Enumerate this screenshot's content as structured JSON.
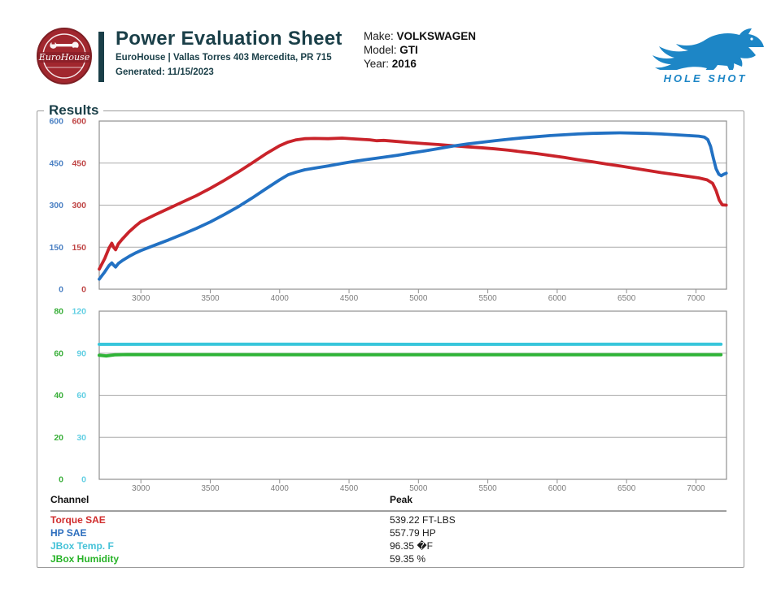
{
  "header": {
    "title": "Power Evaluation Sheet",
    "subtitle": "EuroHouse | Vallas Torres 403 Mercedita, PR 715",
    "generated": "Generated: 11/15/2023",
    "shop_logo_text": "EuroHouse",
    "brand_logo_text": "HOLE SHOT",
    "vehicle": {
      "make_label": "Make:",
      "make": "VOLKSWAGEN",
      "model_label": "Model:",
      "model": "GTI",
      "year_label": "Year:",
      "year": "2016"
    },
    "colors": {
      "accent_teal": "#1a3f48",
      "logo_red": "#a1272e",
      "brand_blue": "#1d86c6"
    }
  },
  "results": {
    "legend": "Results"
  },
  "chart_data": [
    {
      "type": "line",
      "name": "power-chart",
      "x_axis": {
        "range": [
          2700,
          7220
        ],
        "ticks": [
          3000,
          3500,
          4000,
          4500,
          5000,
          5500,
          6000,
          6500,
          7000
        ],
        "label_color": "#7d7d7d"
      },
      "axes": {
        "left_outer": {
          "color": "#4d82c4",
          "range": [
            0,
            600
          ],
          "ticks": [
            600,
            450,
            300,
            150,
            0
          ]
        },
        "left_inner": {
          "color": "#bf4545",
          "range": [
            0,
            600
          ],
          "ticks": [
            600,
            450,
            300,
            150,
            0
          ]
        }
      },
      "grid": true,
      "series": [
        {
          "name": "Torque SAE",
          "color": "#c9232a",
          "width": 3.8,
          "y_range": [
            0,
            600
          ],
          "points": [
            [
              2700,
              72
            ],
            [
              2740,
              110
            ],
            [
              2770,
              146
            ],
            [
              2790,
              164
            ],
            [
              2803,
              150
            ],
            [
              2818,
              141
            ],
            [
              2838,
              162
            ],
            [
              2868,
              180
            ],
            [
              2915,
              205
            ],
            [
              2965,
              227
            ],
            [
              3000,
              241
            ],
            [
              3100,
              265
            ],
            [
              3200,
              288
            ],
            [
              3300,
              311
            ],
            [
              3400,
              334
            ],
            [
              3500,
              360
            ],
            [
              3600,
              388
            ],
            [
              3700,
              418
            ],
            [
              3800,
              450
            ],
            [
              3900,
              483
            ],
            [
              4000,
              512
            ],
            [
              4060,
              525
            ],
            [
              4120,
              533
            ],
            [
              4180,
              537
            ],
            [
              4250,
              538
            ],
            [
              4350,
              537
            ],
            [
              4450,
              539
            ],
            [
              4550,
              536
            ],
            [
              4650,
              533
            ],
            [
              4700,
              530
            ],
            [
              4750,
              531
            ],
            [
              4850,
              527
            ],
            [
              4950,
              523
            ],
            [
              5050,
              519
            ],
            [
              5150,
              516
            ],
            [
              5250,
              512
            ],
            [
              5350,
              508
            ],
            [
              5450,
              505
            ],
            [
              5550,
              501
            ],
            [
              5650,
              496
            ],
            [
              5750,
              490
            ],
            [
              5850,
              484
            ],
            [
              5950,
              477
            ],
            [
              6050,
              470
            ],
            [
              6150,
              462
            ],
            [
              6250,
              455
            ],
            [
              6350,
              447
            ],
            [
              6450,
              440
            ],
            [
              6550,
              432
            ],
            [
              6650,
              424
            ],
            [
              6750,
              416
            ],
            [
              6850,
              409
            ],
            [
              6950,
              402
            ],
            [
              7020,
              397
            ],
            [
              7080,
              390
            ],
            [
              7120,
              378
            ],
            [
              7145,
              352
            ],
            [
              7168,
              318
            ],
            [
              7190,
              301
            ],
            [
              7218,
              300
            ]
          ]
        },
        {
          "name": "HP SAE",
          "color": "#2271c3",
          "width": 3.8,
          "y_range": [
            0,
            600
          ],
          "points": [
            [
              2700,
              36
            ],
            [
              2740,
              62
            ],
            [
              2770,
              84
            ],
            [
              2790,
              94
            ],
            [
              2803,
              86
            ],
            [
              2818,
              79
            ],
            [
              2838,
              92
            ],
            [
              2868,
              103
            ],
            [
              2915,
              117
            ],
            [
              2965,
              130
            ],
            [
              3000,
              138
            ],
            [
              3100,
              157
            ],
            [
              3200,
              176
            ],
            [
              3300,
              196
            ],
            [
              3400,
              217
            ],
            [
              3500,
              240
            ],
            [
              3600,
              266
            ],
            [
              3700,
              294
            ],
            [
              3800,
              325
            ],
            [
              3900,
              358
            ],
            [
              4000,
              390
            ],
            [
              4060,
              408
            ],
            [
              4120,
              418
            ],
            [
              4180,
              426
            ],
            [
              4250,
              432
            ],
            [
              4350,
              440
            ],
            [
              4450,
              449
            ],
            [
              4550,
              457
            ],
            [
              4650,
              464
            ],
            [
              4750,
              471
            ],
            [
              4850,
              478
            ],
            [
              4950,
              486
            ],
            [
              5050,
              494
            ],
            [
              5150,
              502
            ],
            [
              5250,
              511
            ],
            [
              5350,
              518
            ],
            [
              5450,
              524
            ],
            [
              5550,
              530
            ],
            [
              5650,
              535
            ],
            [
              5750,
              540
            ],
            [
              5850,
              544
            ],
            [
              5950,
              548
            ],
            [
              6050,
              551
            ],
            [
              6150,
              554
            ],
            [
              6250,
              556
            ],
            [
              6350,
              557
            ],
            [
              6450,
              558
            ],
            [
              6550,
              557
            ],
            [
              6650,
              556
            ],
            [
              6750,
              554
            ],
            [
              6850,
              551
            ],
            [
              6950,
              548
            ],
            [
              7020,
              546
            ],
            [
              7060,
              543
            ],
            [
              7085,
              534
            ],
            [
              7105,
              510
            ],
            [
              7125,
              468
            ],
            [
              7145,
              430
            ],
            [
              7165,
              410
            ],
            [
              7182,
              405
            ],
            [
              7200,
              410
            ],
            [
              7218,
              414
            ]
          ]
        }
      ]
    },
    {
      "type": "line",
      "name": "env-chart",
      "x_axis": {
        "range": [
          2700,
          7220
        ],
        "ticks": [
          3000,
          3500,
          4000,
          4500,
          5000,
          5500,
          6000,
          6500,
          7000
        ],
        "label_color": "#7d7d7d"
      },
      "axes": {
        "left_outer": {
          "color": "#3aaf3a",
          "range": [
            0,
            80
          ],
          "ticks": [
            80,
            60,
            40,
            20,
            0
          ]
        },
        "left_inner": {
          "color": "#62cfe3",
          "range": [
            0,
            120
          ],
          "ticks": [
            120,
            90,
            60,
            30,
            0
          ]
        }
      },
      "grid": true,
      "series": [
        {
          "name": "JBox Temp. F",
          "color": "#38c6db",
          "width": 4,
          "y_range": [
            0,
            120
          ],
          "points": [
            [
              2700,
              96.3
            ],
            [
              4000,
              96.4
            ],
            [
              5500,
              96.3
            ],
            [
              7180,
              96.4
            ]
          ]
        },
        {
          "name": "JBox Humidity",
          "color": "#2fb437",
          "width": 4,
          "y_range": [
            0,
            80
          ],
          "points": [
            [
              2700,
              59.0
            ],
            [
              2750,
              58.7
            ],
            [
              2810,
              59.2
            ],
            [
              2900,
              59.35
            ],
            [
              4500,
              59.3
            ],
            [
              7180,
              59.3
            ]
          ]
        }
      ]
    }
  ],
  "table": {
    "channel_header": "Channel",
    "peak_header": "Peak",
    "rows": [
      {
        "channel": "Torque SAE",
        "peak": "539.22 FT-LBS",
        "color": "#d02c2c"
      },
      {
        "channel": "HP SAE",
        "peak": "557.79 HP",
        "color": "#2e6fbe"
      },
      {
        "channel": "JBox Temp. F",
        "peak": "96.35 �F",
        "color": "#45c2d8"
      },
      {
        "channel": "JBox Humidity",
        "peak": "59.35 %",
        "color": "#27b327"
      }
    ]
  }
}
